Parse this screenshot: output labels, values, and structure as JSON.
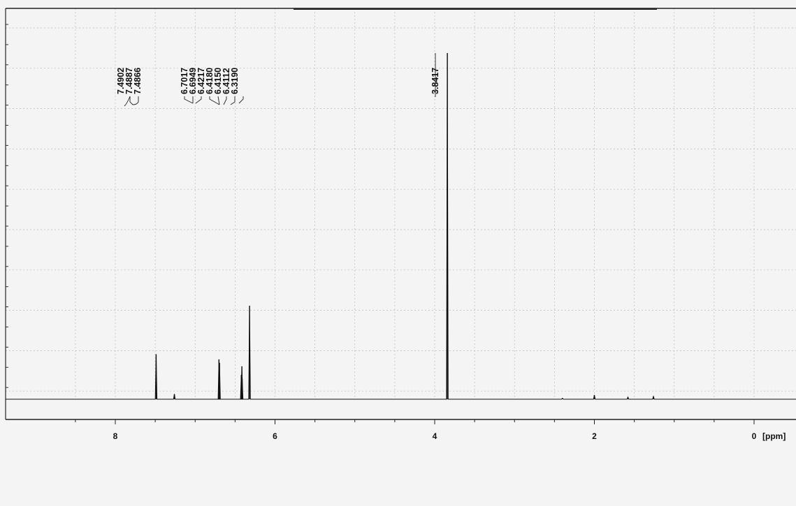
{
  "chart_data": {
    "type": "line",
    "title": "",
    "xlabel": "[ppm]",
    "ylabel": "",
    "x_reversed": true,
    "xlim": [
      8.96,
      -0.26
    ],
    "ylim": [
      0,
      1
    ],
    "grid": true,
    "x_ticks": [
      {
        "value": 8,
        "label": "8"
      },
      {
        "value": 6,
        "label": "6"
      },
      {
        "value": 4,
        "label": "4"
      },
      {
        "value": 2,
        "label": "2"
      },
      {
        "value": 0,
        "label": "0"
      }
    ],
    "peaks": [
      {
        "ppm": 7.4887,
        "height": 0.13
      },
      {
        "ppm": 7.26,
        "height": 0.015
      },
      {
        "ppm": 6.7017,
        "height": 0.115
      },
      {
        "ppm": 6.6949,
        "height": 0.105
      },
      {
        "ppm": 6.4217,
        "height": 0.07
      },
      {
        "ppm": 6.415,
        "height": 0.095
      },
      {
        "ppm": 6.4112,
        "height": 0.06
      },
      {
        "ppm": 6.319,
        "height": 0.27
      },
      {
        "ppm": 3.8417,
        "height": 1.0
      },
      {
        "ppm": 2.0,
        "height": 0.012
      },
      {
        "ppm": 1.58,
        "height": 0.006
      },
      {
        "ppm": 1.26,
        "height": 0.008
      },
      {
        "ppm": 2.4,
        "height": 0.003
      }
    ],
    "peak_label_groups": [
      {
        "labels": [
          "7.4902",
          "7.4887",
          "7.4866"
        ]
      },
      {
        "labels": [
          "6.7017",
          "6.6949",
          "6.4217",
          "6.4180",
          "6.4150",
          "6.4112",
          "6.3190"
        ]
      },
      {
        "labels": [
          "3.8417"
        ]
      }
    ]
  }
}
